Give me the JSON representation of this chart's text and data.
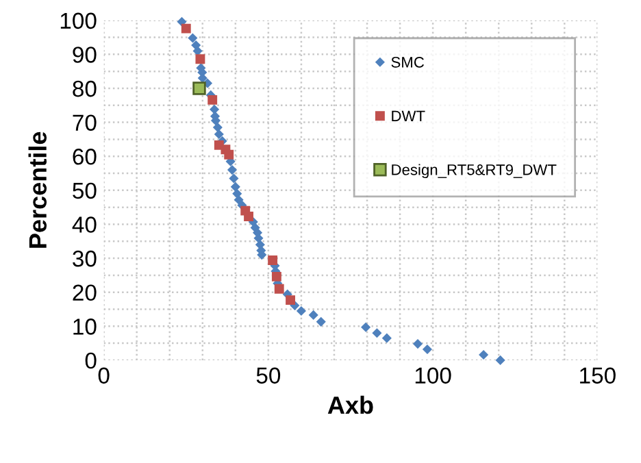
{
  "chart_data": {
    "type": "scatter",
    "xlabel": "Axb",
    "ylabel": "Percentile",
    "xlim": [
      0,
      150
    ],
    "xticks": [
      0,
      50,
      100,
      150
    ],
    "ylim": [
      0,
      100
    ],
    "yticks": [
      0,
      10,
      20,
      30,
      40,
      50,
      60,
      70,
      80,
      90,
      100
    ],
    "grid": true,
    "legend": "top right",
    "series": [
      {
        "name": "SMC",
        "color": "#4f81bd",
        "marker": "diamond",
        "x": [
          23.7,
          27,
          28,
          28.5,
          29.5,
          29.9,
          30,
          31.5,
          32.5,
          33.6,
          33.8,
          34,
          34.6,
          35,
          36,
          38.5,
          39,
          39.5,
          40,
          40.5,
          41,
          42,
          45.4,
          46,
          46.7,
          47,
          47.5,
          47.8,
          48,
          52,
          52.2,
          52.8,
          55.8,
          58,
          60,
          63.7,
          66,
          79.6,
          83,
          86,
          95.4,
          98.3,
          115.4,
          120.5
        ],
        "values": [
          99.6,
          94.8,
          92.7,
          91,
          86,
          84.7,
          83,
          81.5,
          78,
          73.8,
          71.8,
          70.5,
          68.5,
          66.5,
          64.5,
          58.5,
          56,
          53.5,
          51,
          49,
          47.2,
          45.6,
          40.7,
          39,
          37.5,
          35.9,
          34,
          32.3,
          31,
          27.8,
          26.2,
          22.6,
          19.4,
          16.1,
          14.5,
          13.3,
          11.3,
          9.7,
          8,
          6.5,
          4.8,
          3.2,
          1.6,
          0
        ]
      },
      {
        "name": "DWT",
        "color": "#c0504d",
        "marker": "square",
        "x": [
          25,
          29.3,
          33,
          35,
          37,
          38,
          43,
          44,
          51.3,
          52.5,
          53.3,
          56.7
        ],
        "values": [
          97.6,
          88.6,
          76.6,
          63.3,
          62,
          60.5,
          44,
          42.3,
          29.4,
          24.6,
          21,
          17.7
        ]
      },
      {
        "name": "Design_RT5&RT9_DWT",
        "color": "#9bbb59",
        "marker": "square",
        "x": [
          29
        ],
        "values": [
          80
        ]
      }
    ]
  }
}
